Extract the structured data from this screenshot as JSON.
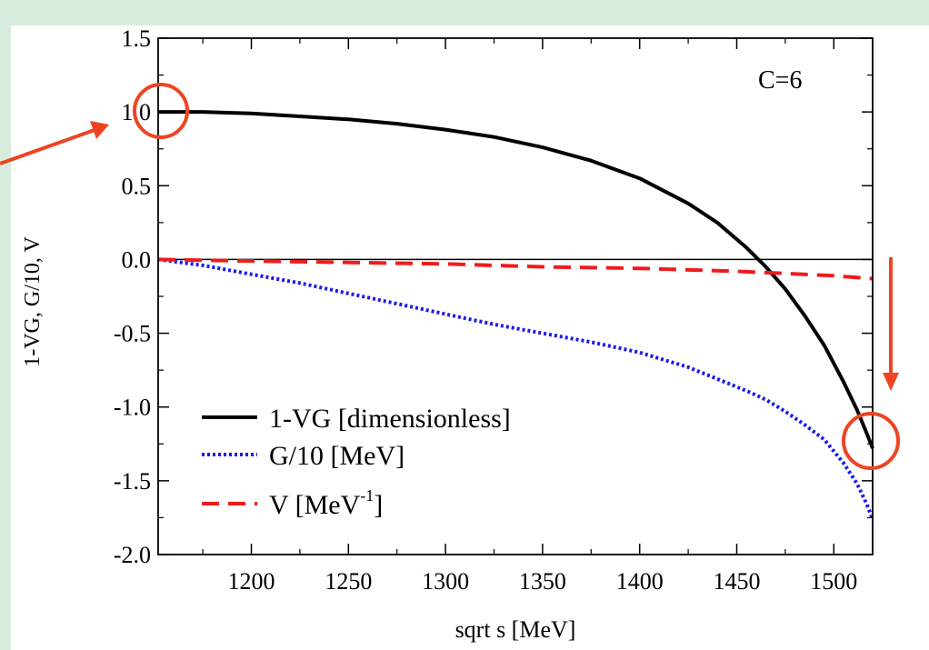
{
  "chart_data": {
    "type": "line",
    "xlabel": "sqrt s [MeV]",
    "ylabel": "1-VG, G/10, V",
    "xlim": [
      1152,
      1520
    ],
    "ylim": [
      -2.0,
      1.5
    ],
    "xticks": [
      1200,
      1250,
      1300,
      1350,
      1400,
      1450,
      1500
    ],
    "yticks": [
      1.5,
      1.0,
      0.5,
      0.0,
      -0.5,
      -1.0,
      -1.5,
      -2.0
    ],
    "ytick_labels": [
      "1.5",
      "1.0",
      "0.5",
      "0.0",
      "-0.5",
      "-1.0",
      "-1.5",
      "-2.0"
    ],
    "annotation": "C=6",
    "legend_position": "bottom-left",
    "series": [
      {
        "name": "1-VG [dimensionless]",
        "color": "#000000",
        "style": "solid",
        "x": [
          1152,
          1175,
          1200,
          1225,
          1250,
          1275,
          1300,
          1325,
          1350,
          1375,
          1400,
          1425,
          1440,
          1455,
          1465,
          1475,
          1485,
          1495,
          1505,
          1512,
          1517,
          1520
        ],
        "y": [
          1.0,
          1.0,
          0.99,
          0.97,
          0.95,
          0.92,
          0.88,
          0.83,
          0.76,
          0.67,
          0.55,
          0.38,
          0.25,
          0.08,
          -0.05,
          -0.2,
          -0.38,
          -0.58,
          -0.83,
          -1.02,
          -1.18,
          -1.28
        ]
      },
      {
        "name": "G/10 [MeV]",
        "color": "#1a1aee",
        "style": "dotted",
        "x": [
          1152,
          1175,
          1200,
          1225,
          1250,
          1275,
          1300,
          1325,
          1350,
          1375,
          1400,
          1425,
          1440,
          1455,
          1465,
          1475,
          1485,
          1495,
          1505,
          1512,
          1517,
          1520
        ],
        "y": [
          0.0,
          -0.04,
          -0.1,
          -0.16,
          -0.23,
          -0.3,
          -0.37,
          -0.44,
          -0.5,
          -0.56,
          -0.63,
          -0.73,
          -0.81,
          -0.89,
          -0.95,
          -1.03,
          -1.12,
          -1.22,
          -1.38,
          -1.52,
          -1.66,
          -1.76
        ]
      },
      {
        "name": "V [MeV-1]",
        "color": "#ee1c1c",
        "style": "dashed",
        "x": [
          1152,
          1200,
          1250,
          1300,
          1350,
          1400,
          1450,
          1500,
          1520
        ],
        "y": [
          0.0,
          -0.01,
          -0.02,
          -0.03,
          -0.05,
          -0.06,
          -0.08,
          -0.11,
          -0.13
        ]
      }
    ]
  },
  "legend": {
    "solid_label": "1-VG [dimensionless]",
    "dotted_label": "G/10 [MeV]",
    "dashed_base": "V [MeV",
    "dashed_sup": "-1",
    "dashed_close": "]"
  },
  "highlights": {
    "color": "#ee4422"
  }
}
